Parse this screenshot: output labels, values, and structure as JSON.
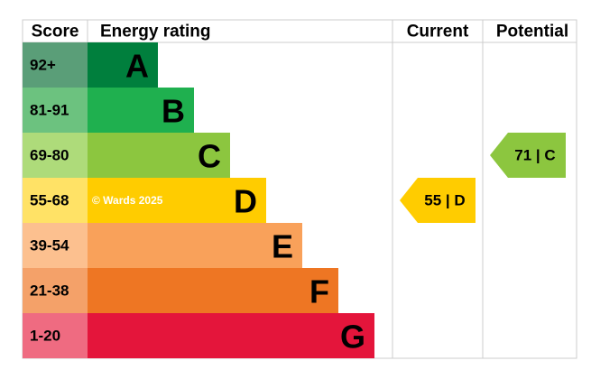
{
  "header": {
    "score": "Score",
    "rating": "Energy rating",
    "current": "Current",
    "potential": "Potential"
  },
  "bands": [
    {
      "score": "92+",
      "letter": "A"
    },
    {
      "score": "81-91",
      "letter": "B"
    },
    {
      "score": "69-80",
      "letter": "C"
    },
    {
      "score": "55-68",
      "letter": "D"
    },
    {
      "score": "39-54",
      "letter": "E"
    },
    {
      "score": "21-38",
      "letter": "F"
    },
    {
      "score": "1-20",
      "letter": "G"
    }
  ],
  "watermark": "© Wards 2025",
  "current": "55 | D",
  "potential": "71 | C"
}
